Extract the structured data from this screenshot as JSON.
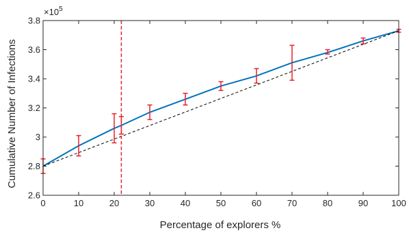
{
  "chart_data": {
    "type": "line",
    "xlabel": "Percentage of explorers %",
    "ylabel": "Cumulative Number of Infections",
    "y_exponent_label": "×10",
    "y_exponent_power": "5",
    "xlim": [
      0,
      100
    ],
    "ylim": [
      2.6,
      3.8
    ],
    "x_ticks": [
      0,
      10,
      20,
      30,
      40,
      50,
      60,
      70,
      80,
      90,
      100
    ],
    "x_tick_labels": [
      "0",
      "10",
      "20",
      "30",
      "40",
      "50",
      "60",
      "70",
      "80",
      "90",
      "100"
    ],
    "y_ticks": [
      2.6,
      2.8,
      3.0,
      3.2,
      3.4,
      3.6,
      3.8
    ],
    "y_tick_labels": [
      "2.6",
      "2.8",
      "3",
      "3.2",
      "3.4",
      "3.6",
      "3.8"
    ],
    "grid": false,
    "series": [
      {
        "style": "solid",
        "color": "#0072BD",
        "x": [
          0,
          10,
          20,
          22,
          30,
          40,
          50,
          60,
          70,
          80,
          90,
          100
        ],
        "y": [
          2.8,
          2.94,
          3.06,
          3.08,
          3.17,
          3.26,
          3.35,
          3.42,
          3.51,
          3.58,
          3.66,
          3.73
        ]
      },
      {
        "style": "dashed",
        "color": "#000000",
        "x": [
          0,
          100
        ],
        "y": [
          2.8,
          3.73
        ]
      }
    ],
    "error_bars": {
      "color": "#E8202A",
      "x": [
        0,
        10,
        20,
        22,
        30,
        40,
        50,
        60,
        70,
        80,
        90,
        100
      ],
      "y": [
        2.8,
        2.94,
        3.06,
        3.08,
        3.17,
        3.26,
        3.35,
        3.42,
        3.51,
        3.58,
        3.66,
        3.73
      ],
      "lower": [
        2.75,
        2.87,
        2.96,
        3.02,
        3.12,
        3.22,
        3.32,
        3.37,
        3.39,
        3.57,
        3.64,
        3.72
      ],
      "upper": [
        2.85,
        3.01,
        3.16,
        3.14,
        3.22,
        3.3,
        3.38,
        3.47,
        3.63,
        3.6,
        3.68,
        3.74
      ]
    },
    "vertical_line": {
      "x": 22,
      "style": "dashed",
      "color": "#E8202A"
    }
  }
}
